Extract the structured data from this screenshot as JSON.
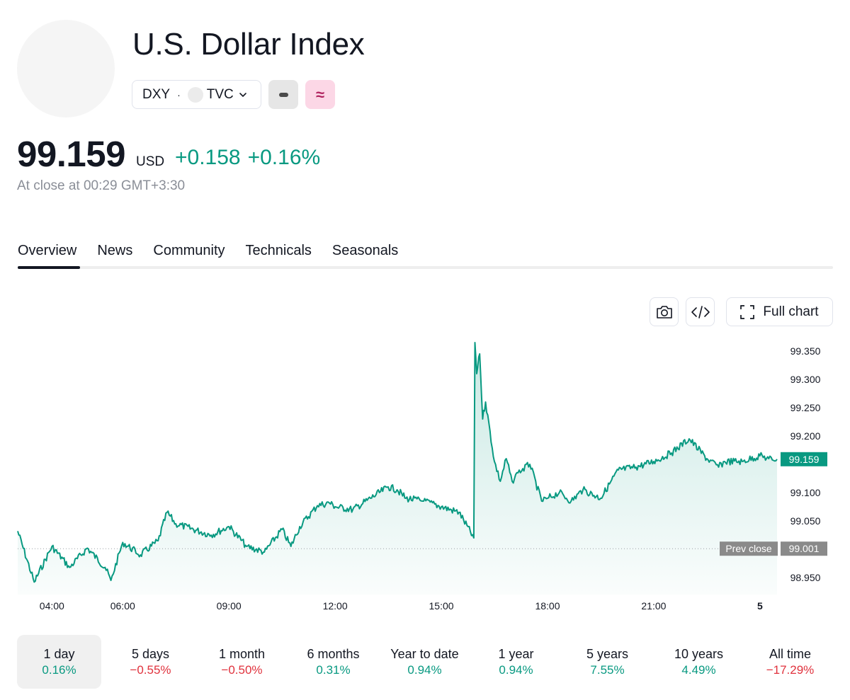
{
  "header": {
    "title": "U.S. Dollar Index",
    "ticker": "DXY",
    "separator": "·",
    "exchange": "TVC",
    "badge_pink": "≈"
  },
  "quote": {
    "price": "99.159",
    "currency": "USD",
    "change_abs": "+0.158",
    "change_pct": "+0.16%",
    "close_time": "At close at 00:29 GMT+3:30"
  },
  "tabs": [
    {
      "label": "Overview",
      "active": true
    },
    {
      "label": "News",
      "active": false
    },
    {
      "label": "Community",
      "active": false
    },
    {
      "label": "Technicals",
      "active": false
    },
    {
      "label": "Seasonals",
      "active": false
    }
  ],
  "toolbar": {
    "full_chart_label": "Full chart"
  },
  "colors": {
    "accent_green": "#089981",
    "negative_red": "#e0323d",
    "prev_close_label_bg": "#8a8a8a"
  },
  "chart_data": {
    "type": "area",
    "x_ticks": [
      "04:00",
      "06:00",
      "09:00",
      "12:00",
      "15:00",
      "18:00",
      "21:00",
      "5"
    ],
    "y_ticks": [
      "99.350",
      "99.300",
      "99.250",
      "99.200",
      "99.100",
      "99.050",
      "98.950"
    ],
    "ylim": [
      98.92,
      99.37
    ],
    "current_value": "99.159",
    "prev_close_label": "Prev close",
    "prev_close_value": "99.001",
    "series": [
      {
        "x": [
          "03:02",
          "03:30",
          "04:00",
          "04:30",
          "05:00",
          "05:30",
          "05:40",
          "06:00",
          "06:30",
          "07:00",
          "07:15",
          "07:30",
          "08:00",
          "08:30",
          "09:00",
          "09:30",
          "10:00",
          "10:30",
          "10:45",
          "11:00",
          "11:30",
          "11:50",
          "12:00",
          "12:30",
          "13:00",
          "13:30",
          "13:45",
          "14:00",
          "14:30",
          "15:00",
          "15:30",
          "15:55",
          "15:57",
          "16:00",
          "16:05",
          "16:10",
          "16:15",
          "16:30",
          "16:40",
          "16:50",
          "17:00",
          "17:10",
          "17:30",
          "17:50",
          "18:00",
          "18:20",
          "18:40",
          "19:00",
          "19:30",
          "20:00",
          "20:30",
          "21:00",
          "21:30",
          "22:00",
          "22:30",
          "22:50",
          "23:00",
          "23:30",
          "24:00",
          "00:15",
          "00:29"
        ],
        "values": [
          99.032,
          98.942,
          99.005,
          98.968,
          99.002,
          98.968,
          98.945,
          99.012,
          98.99,
          99.015,
          99.065,
          99.045,
          99.035,
          99.025,
          99.04,
          99.005,
          98.995,
          99.035,
          99.005,
          99.04,
          99.077,
          99.082,
          99.075,
          99.07,
          99.09,
          99.11,
          99.105,
          99.09,
          99.085,
          99.075,
          99.065,
          99.02,
          99.365,
          99.31,
          99.345,
          99.23,
          99.26,
          99.155,
          99.12,
          99.16,
          99.12,
          99.135,
          99.15,
          99.085,
          99.09,
          99.1,
          99.085,
          99.105,
          99.09,
          99.14,
          99.145,
          99.155,
          99.17,
          99.195,
          99.16,
          99.145,
          99.155,
          99.155,
          99.165,
          99.16,
          99.159
        ]
      }
    ],
    "grid": false,
    "legend": "none"
  },
  "periods": [
    {
      "label": "1 day",
      "value": "0.16%",
      "sign": "pos",
      "active": true
    },
    {
      "label": "5 days",
      "value": "−0.55%",
      "sign": "neg",
      "active": false
    },
    {
      "label": "1 month",
      "value": "−0.50%",
      "sign": "neg",
      "active": false
    },
    {
      "label": "6 months",
      "value": "0.31%",
      "sign": "pos",
      "active": false
    },
    {
      "label": "Year to date",
      "value": "0.94%",
      "sign": "pos",
      "active": false
    },
    {
      "label": "1 year",
      "value": "0.94%",
      "sign": "pos",
      "active": false
    },
    {
      "label": "5 years",
      "value": "7.55%",
      "sign": "pos",
      "active": false
    },
    {
      "label": "10 years",
      "value": "4.49%",
      "sign": "pos",
      "active": false
    },
    {
      "label": "All time",
      "value": "−17.29%",
      "sign": "neg",
      "active": false
    }
  ]
}
